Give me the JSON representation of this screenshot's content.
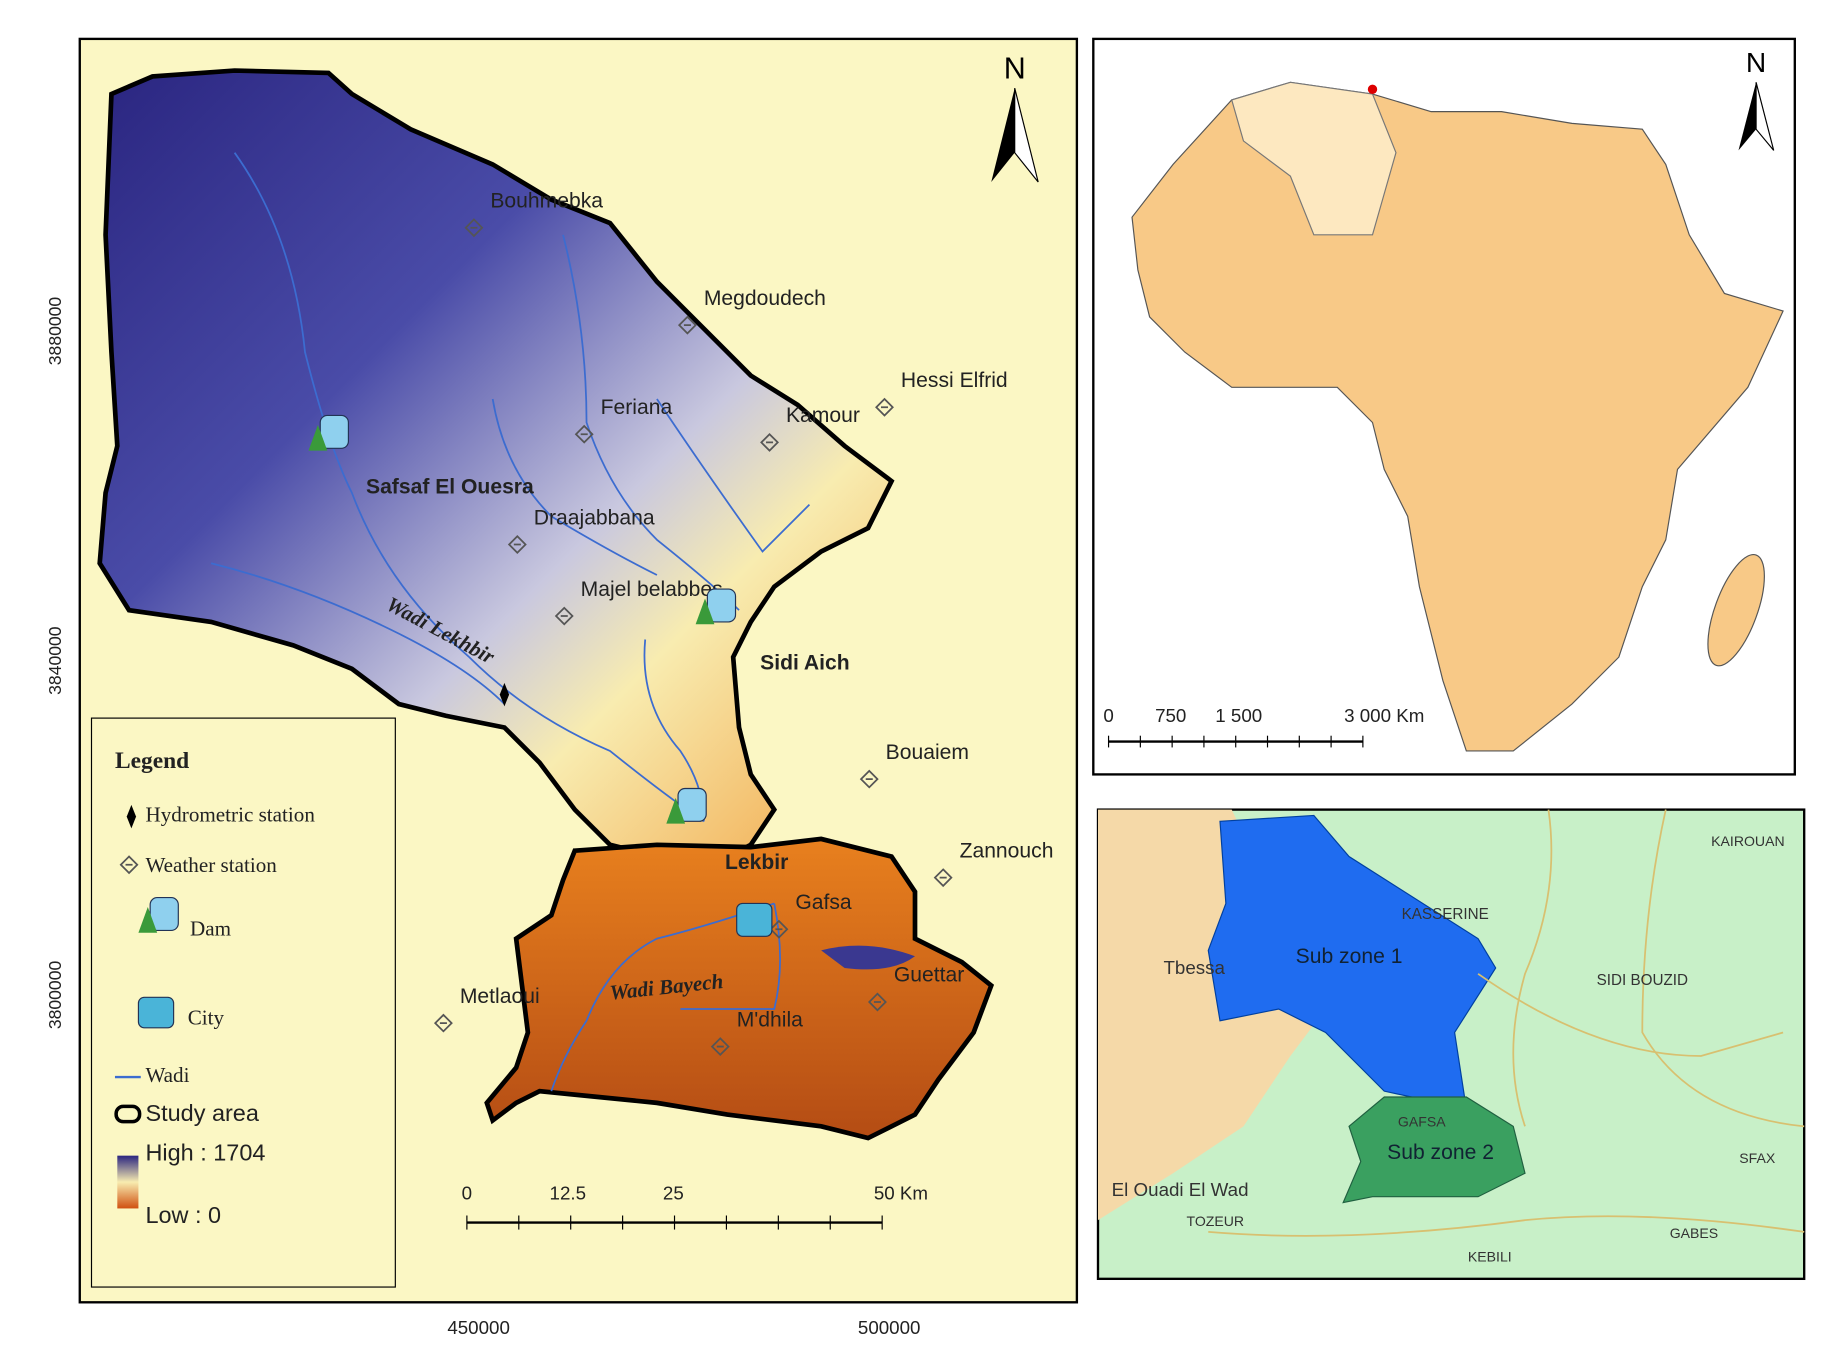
{
  "main_map": {
    "north": "N",
    "y_axis_labels": [
      "3880000",
      "3840000",
      "3800000"
    ],
    "x_axis_labels": [
      "450000",
      "500000"
    ],
    "places": [
      "Bouhmebka",
      "Megdoudech",
      "Hessi Elfrid",
      "Feriana",
      "Kamour",
      "Safsaf El Ouesra",
      "Draajabbana",
      "Majel belabbes",
      "Sidi Aich",
      "Bouaiem",
      "Zannouch",
      "Lekbir",
      "Gafsa",
      "Guettar",
      "Metlaoui",
      "M'dhila"
    ],
    "rivers": [
      "Wadi Lekhbir",
      "Wadi Bayech"
    ],
    "legend": {
      "title": "Legend",
      "items": [
        "Hydrometric station",
        "Weather station",
        "Dam",
        "City",
        "Wadi",
        "Study area",
        "High : 1704",
        "Low : 0"
      ]
    },
    "scale_bar": [
      "0",
      "12.5",
      "25",
      "50 Km"
    ]
  },
  "africa_map": {
    "north": "N",
    "scale_bar": [
      "0",
      "750",
      "1 500",
      "3 000 Km"
    ]
  },
  "region_map": {
    "labels": [
      "KAIROUAN",
      "KASSERINE",
      "Tbessa",
      "Sub zone 1",
      "SIDI BOUZID",
      "GAFSA",
      "Sub zone 2",
      "SFAX",
      "El Ouadi El Wad",
      "TOZEUR",
      "KEBILI",
      "GABES"
    ]
  }
}
